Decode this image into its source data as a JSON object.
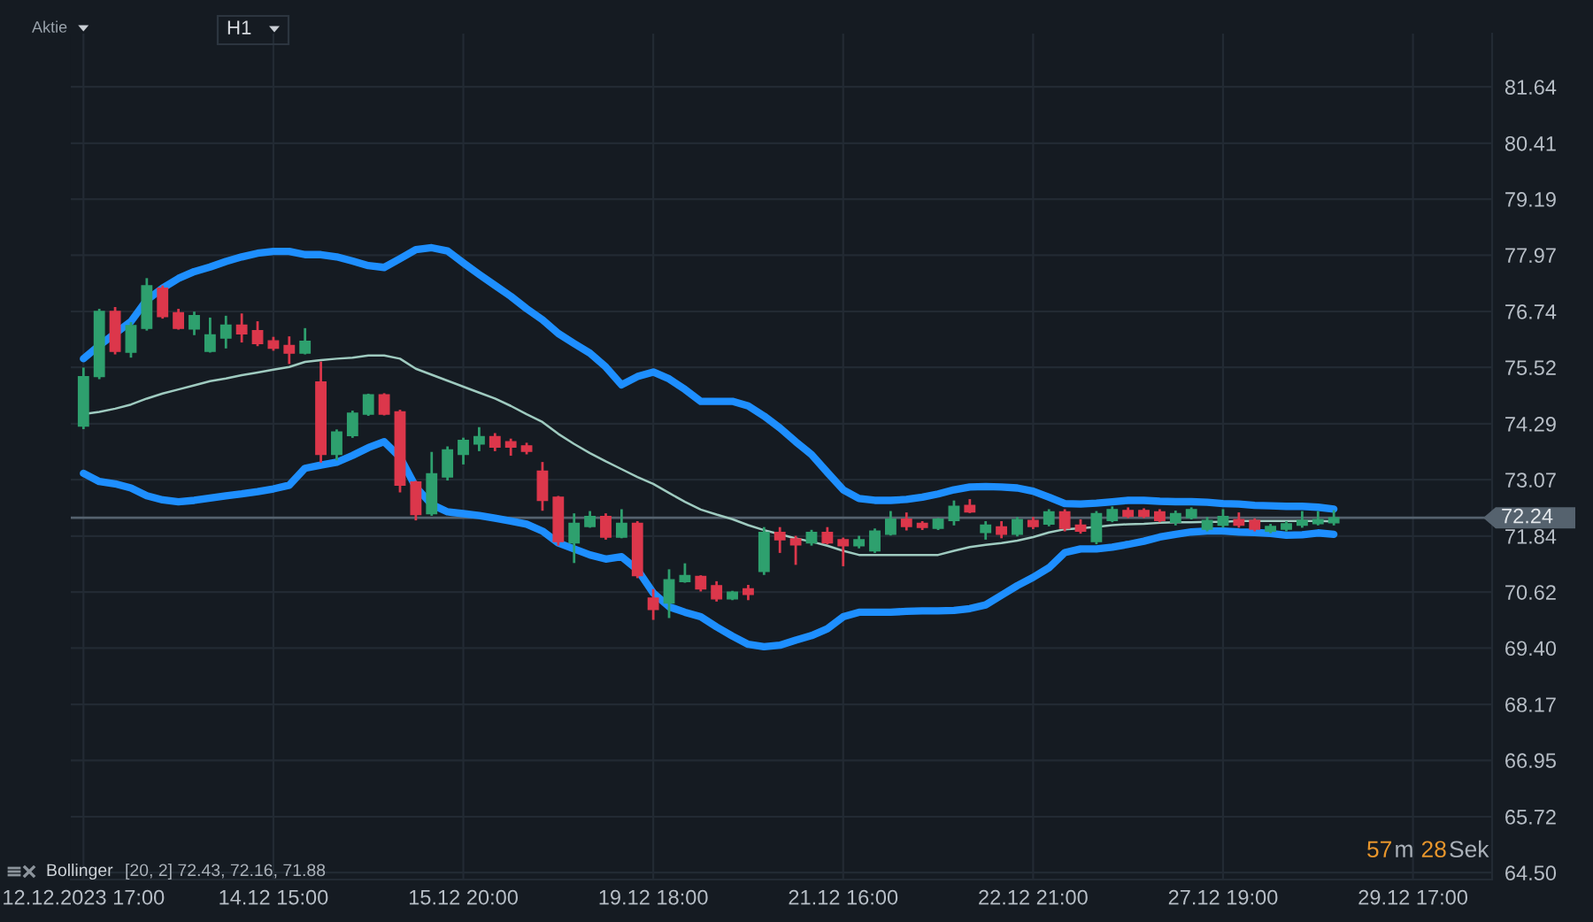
{
  "chart_data": {
    "type": "candlestick",
    "subtitle": "Aktie",
    "categories": [
      "12.12.2023 17:00",
      null,
      null,
      null,
      null,
      null,
      null,
      null,
      null,
      null,
      null,
      null,
      "14.12 15:00",
      null,
      null,
      null,
      null,
      null,
      null,
      null,
      null,
      null,
      null,
      null,
      "15.12 20:00",
      null,
      null,
      null,
      null,
      null,
      null,
      null,
      null,
      null,
      null,
      null,
      "19.12 18:00",
      null,
      null,
      null,
      null,
      null,
      null,
      null,
      null,
      null,
      null,
      null,
      "21.12 16:00",
      null,
      null,
      null,
      null,
      null,
      null,
      null,
      null,
      null,
      null,
      null,
      "22.12 21:00",
      null,
      null,
      null,
      null,
      null,
      null,
      null,
      null,
      null,
      null,
      null,
      "27.12 19:00",
      null,
      null,
      null,
      null,
      null,
      null,
      null,
      null,
      null,
      null,
      null,
      "29.12 17:00"
    ],
    "ohlc": [
      [
        74.24,
        75.49,
        74.2,
        75.32
      ],
      [
        75.32,
        76.77,
        75.29,
        76.74
      ],
      [
        76.74,
        76.81,
        75.83,
        75.87
      ],
      [
        75.85,
        76.48,
        75.76,
        76.43
      ],
      [
        76.37,
        77.44,
        76.35,
        77.3
      ],
      [
        77.25,
        77.28,
        76.61,
        76.63
      ],
      [
        76.71,
        76.77,
        76.37,
        76.37
      ],
      [
        76.36,
        76.71,
        76.25,
        76.65
      ],
      [
        75.87,
        76.58,
        75.87,
        76.23
      ],
      [
        76.16,
        76.62,
        75.96,
        76.44
      ],
      [
        76.44,
        76.67,
        76.09,
        76.25
      ],
      [
        76.32,
        76.5,
        76.01,
        76.04
      ],
      [
        76.1,
        76.16,
        75.91,
        75.94
      ],
      [
        76.0,
        76.17,
        75.62,
        75.83
      ],
      [
        75.83,
        76.35,
        75.83,
        76.09
      ],
      [
        75.2,
        75.62,
        73.47,
        73.62
      ],
      [
        73.62,
        74.14,
        73.52,
        74.11
      ],
      [
        74.03,
        74.55,
        74.01,
        74.52
      ],
      [
        74.5,
        74.92,
        74.49,
        74.92
      ],
      [
        74.92,
        74.93,
        74.5,
        74.5
      ],
      [
        74.55,
        74.57,
        72.82,
        72.95
      ],
      [
        73.02,
        73.02,
        72.21,
        72.31
      ],
      [
        72.33,
        73.65,
        72.31,
        73.2
      ],
      [
        73.13,
        73.77,
        73.08,
        73.72
      ],
      [
        73.62,
        73.96,
        73.43,
        73.93
      ],
      [
        73.85,
        74.19,
        73.72,
        74.01
      ],
      [
        74.01,
        74.06,
        73.72,
        73.78
      ],
      [
        73.9,
        73.94,
        73.62,
        73.78
      ],
      [
        73.81,
        73.85,
        73.65,
        73.69
      ],
      [
        73.26,
        73.43,
        72.42,
        72.62
      ],
      [
        72.69,
        72.69,
        71.66,
        71.72
      ],
      [
        71.69,
        72.31,
        71.28,
        72.12
      ],
      [
        72.05,
        72.36,
        72.05,
        72.27
      ],
      [
        72.27,
        72.31,
        71.79,
        71.82
      ],
      [
        71.82,
        72.4,
        71.82,
        72.12
      ],
      [
        72.12,
        72.14,
        70.95,
        70.98
      ],
      [
        70.49,
        70.66,
        70.04,
        70.24
      ],
      [
        70.38,
        71.09,
        70.08,
        70.89
      ],
      [
        70.85,
        71.22,
        70.85,
        70.98
      ],
      [
        70.96,
        70.96,
        70.66,
        70.69
      ],
      [
        70.76,
        70.83,
        70.44,
        70.47
      ],
      [
        70.47,
        70.62,
        70.47,
        70.62
      ],
      [
        70.69,
        70.75,
        70.47,
        70.57
      ],
      [
        71.07,
        72.01,
        71.02,
        71.92
      ],
      [
        71.92,
        72.01,
        71.5,
        71.76
      ],
      [
        71.78,
        71.82,
        71.24,
        71.65
      ],
      [
        71.69,
        71.95,
        71.66,
        71.92
      ],
      [
        71.92,
        72.01,
        71.69,
        71.69
      ],
      [
        71.76,
        71.78,
        71.21,
        71.63
      ],
      [
        71.63,
        71.82,
        71.6,
        71.76
      ],
      [
        71.52,
        71.98,
        71.5,
        71.95
      ],
      [
        71.88,
        72.36,
        71.88,
        72.21
      ],
      [
        72.21,
        72.33,
        71.99,
        72.05
      ],
      [
        72.12,
        72.14,
        72.0,
        72.03
      ],
      [
        72.01,
        72.21,
        72.0,
        72.21
      ],
      [
        72.18,
        72.59,
        72.1,
        72.49
      ],
      [
        72.51,
        72.62,
        72.37,
        72.37
      ],
      [
        71.92,
        72.14,
        71.79,
        72.08
      ],
      [
        72.04,
        72.14,
        71.82,
        71.88
      ],
      [
        71.88,
        72.23,
        71.86,
        72.2
      ],
      [
        72.18,
        72.23,
        72.02,
        72.05
      ],
      [
        72.1,
        72.4,
        72.08,
        72.37
      ],
      [
        72.37,
        72.4,
        71.97,
        72.01
      ],
      [
        72.08,
        72.18,
        71.92,
        71.95
      ],
      [
        71.72,
        72.36,
        71.69,
        72.33
      ],
      [
        72.18,
        72.46,
        72.17,
        72.42
      ],
      [
        72.4,
        72.44,
        72.26,
        72.27
      ],
      [
        72.4,
        72.42,
        72.26,
        72.27
      ],
      [
        72.37,
        72.4,
        72.17,
        72.18
      ],
      [
        72.14,
        72.37,
        72.1,
        72.33
      ],
      [
        72.24,
        72.44,
        72.23,
        72.42
      ],
      [
        71.99,
        72.23,
        71.97,
        72.18
      ],
      [
        72.08,
        72.4,
        72.05,
        72.27
      ],
      [
        72.2,
        72.33,
        72.05,
        72.08
      ],
      [
        72.18,
        72.2,
        71.97,
        71.99
      ],
      [
        71.95,
        72.08,
        71.93,
        72.05
      ],
      [
        71.99,
        72.14,
        71.97,
        72.11
      ],
      [
        72.08,
        72.36,
        72.05,
        72.18
      ],
      [
        72.11,
        72.36,
        72.1,
        72.2
      ],
      [
        72.13,
        72.38,
        72.1,
        72.24
      ],
      null,
      null,
      null,
      null,
      null
    ],
    "colors": [
      "#2ea06e",
      "#2ea06e",
      "#dc374b",
      "#2ea06e",
      "#2ea06e",
      "#dc374b",
      "#dc374b",
      "#2ea06e",
      "#2ea06e",
      "#2ea06e",
      "#dc374b",
      "#dc374b",
      "#dc374b",
      "#dc374b",
      "#2ea06e",
      "#dc374b",
      "#2ea06e",
      "#2ea06e",
      "#2ea06e",
      "#dc374b",
      "#dc374b",
      "#dc374b",
      "#2ea06e",
      "#2ea06e",
      "#2ea06e",
      "#2ea06e",
      "#dc374b",
      "#dc374b",
      "#dc374b",
      "#dc374b",
      "#dc374b",
      "#2ea06e",
      "#2ea06e",
      "#dc374b",
      "#2ea06e",
      "#dc374b",
      "#dc374b",
      "#2ea06e",
      "#2ea06e",
      "#dc374b",
      "#dc374b",
      "#2ea06e",
      "#dc374b",
      "#2ea06e",
      "#dc374b",
      "#dc374b",
      "#2ea06e",
      "#dc374b",
      "#dc374b",
      "#2ea06e",
      "#2ea06e",
      "#2ea06e",
      "#dc374b",
      "#dc374b",
      "#2ea06e",
      "#2ea06e",
      "#dc374b",
      "#2ea06e",
      "#dc374b",
      "#2ea06e",
      "#dc374b",
      "#2ea06e",
      "#dc374b",
      "#dc374b",
      "#2ea06e",
      "#2ea06e",
      "#dc374b",
      "#dc374b",
      "#dc374b",
      "#2ea06e",
      "#2ea06e",
      "#2ea06e",
      "#2ea06e",
      "#dc374b",
      "#dc374b",
      "#2ea06e",
      "#2ea06e",
      "#2ea06e",
      "#2ea06e",
      "#2ea06e",
      null,
      null,
      null,
      null,
      null
    ],
    "series": [
      {
        "type": "line",
        "color": "#1e8fff",
        "values": [
          75.71,
          76.0,
          76.26,
          76.52,
          76.99,
          77.25,
          77.46,
          77.61,
          77.71,
          77.83,
          77.93,
          78.01,
          78.05,
          78.05,
          77.98,
          77.98,
          77.93,
          77.84,
          77.74,
          77.7,
          77.89,
          78.09,
          78.13,
          78.06,
          77.8,
          77.55,
          77.31,
          77.07,
          76.8,
          76.56,
          76.26,
          76.04,
          75.83,
          75.53,
          75.14,
          75.32,
          75.42,
          75.27,
          75.04,
          74.78,
          74.78,
          74.78,
          74.68,
          74.46,
          74.2,
          73.9,
          73.62,
          73.23,
          72.85,
          72.66,
          72.62,
          72.62,
          72.64,
          72.69,
          72.76,
          72.85,
          72.91,
          72.92,
          72.91,
          72.89,
          72.82,
          72.69,
          72.55,
          72.54,
          72.56,
          72.59,
          72.62,
          72.62,
          72.6,
          72.59,
          72.59,
          72.58,
          72.55,
          72.54,
          72.51,
          72.5,
          72.49,
          72.49,
          72.47,
          72.43,
          null,
          null,
          null,
          null,
          null
        ]
      },
      {
        "type": "line",
        "color": "#9fcbc0",
        "values": [
          74.5,
          74.55,
          74.62,
          74.71,
          74.84,
          74.95,
          75.04,
          75.13,
          75.22,
          75.28,
          75.35,
          75.41,
          75.47,
          75.53,
          75.64,
          75.68,
          75.71,
          75.73,
          75.78,
          75.78,
          75.71,
          75.49,
          75.36,
          75.23,
          75.1,
          74.97,
          74.84,
          74.68,
          74.5,
          74.33,
          74.07,
          73.85,
          73.65,
          73.47,
          73.3,
          73.13,
          72.98,
          72.78,
          72.59,
          72.42,
          72.31,
          72.21,
          72.08,
          71.97,
          71.88,
          71.79,
          71.72,
          71.63,
          71.52,
          71.43,
          71.43,
          71.43,
          71.43,
          71.43,
          71.43,
          71.52,
          71.6,
          71.65,
          71.69,
          71.74,
          71.82,
          71.92,
          71.99,
          72.01,
          72.04,
          72.08,
          72.1,
          72.11,
          72.13,
          72.14,
          72.14,
          72.15,
          72.15,
          72.17,
          72.17,
          72.17,
          72.17,
          72.17,
          72.17,
          72.16,
          null,
          null,
          null,
          null,
          null
        ]
      },
      {
        "type": "line",
        "color": "#1e8fff",
        "values": [
          73.21,
          73.03,
          72.98,
          72.89,
          72.72,
          72.63,
          72.59,
          72.62,
          72.67,
          72.72,
          72.76,
          72.81,
          72.87,
          72.95,
          73.32,
          73.39,
          73.45,
          73.6,
          73.77,
          73.9,
          73.56,
          72.91,
          72.53,
          72.37,
          72.33,
          72.29,
          72.23,
          72.17,
          72.1,
          71.95,
          71.69,
          71.56,
          71.43,
          71.34,
          71.39,
          71.11,
          70.6,
          70.3,
          70.18,
          70.08,
          69.86,
          69.66,
          69.48,
          69.43,
          69.46,
          69.57,
          69.67,
          69.82,
          70.08,
          70.18,
          70.18,
          70.18,
          70.2,
          70.21,
          70.21,
          70.22,
          70.26,
          70.34,
          70.55,
          70.76,
          70.94,
          71.15,
          71.48,
          71.56,
          71.56,
          71.6,
          71.66,
          71.73,
          71.82,
          71.88,
          71.93,
          71.95,
          71.95,
          71.93,
          71.92,
          71.9,
          71.86,
          71.87,
          71.91,
          71.88,
          null,
          null,
          null,
          null,
          null
        ]
      }
    ],
    "ylim": [
      64.35,
      82.8
    ],
    "yticks": [
      {
        "value": 64.5,
        "label": "64.50"
      },
      65.72,
      66.95,
      68.17,
      {
        "value": 69.4,
        "label": "69.40"
      },
      70.62,
      71.84,
      73.07,
      74.29,
      75.52,
      76.74,
      77.97,
      79.19,
      80.41,
      81.64
    ],
    "ref_lines": [
      {
        "axis": "y",
        "value": 72.24,
        "label": "72.24",
        "color": "#55626e"
      }
    ],
    "grid": true,
    "annotations": [
      "H1",
      "Bollinger",
      "[20, 2] 72.43, 72.16, 71.88",
      "57",
      "m",
      "28",
      "Sek"
    ]
  }
}
